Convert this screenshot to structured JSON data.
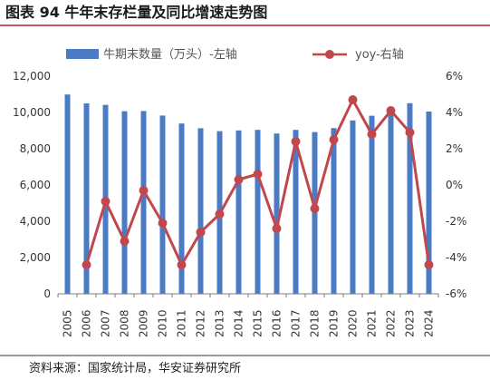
{
  "title": "图表 94  牛年末存栏量及同比增速走势图",
  "source": "资料来源：国家统计局，华安证券研究所",
  "colors": {
    "bar": "#4a7bc4",
    "line": "#c0484d",
    "title_rule": "#b22222"
  },
  "chart_data": {
    "type": "bar+line",
    "categories": [
      "2005",
      "2006",
      "2007",
      "2008",
      "2009",
      "2010",
      "2011",
      "2012",
      "2013",
      "2014",
      "2015",
      "2016",
      "2017",
      "2018",
      "2019",
      "2020",
      "2021",
      "2022",
      "2023",
      "2024"
    ],
    "series": [
      {
        "name": "牛期末数量（万头）-左轴",
        "type": "bar",
        "axis": "left",
        "values": [
          10990,
          10500,
          10420,
          10070,
          10080,
          9830,
          9390,
          9130,
          8970,
          9010,
          9040,
          8840,
          9040,
          8920,
          9140,
          9560,
          9820,
          10210,
          10510,
          10050
        ]
      },
      {
        "name": "yoy-右轴",
        "type": "line",
        "axis": "right",
        "values": [
          null,
          -4.4,
          -0.9,
          -3.1,
          -0.3,
          -2.1,
          -4.4,
          -2.6,
          -1.6,
          0.3,
          0.6,
          -2.4,
          2.4,
          -1.3,
          2.5,
          4.7,
          2.8,
          4.1,
          2.9,
          -4.4
        ]
      }
    ],
    "y_left": {
      "min": 0,
      "max": 12000,
      "ticks": [
        "0",
        "2,000",
        "4,000",
        "6,000",
        "8,000",
        "10,000",
        "12,000"
      ]
    },
    "y_right": {
      "min": -6,
      "max": 6,
      "ticks": [
        "-6%",
        "-4%",
        "-2%",
        "0%",
        "2%",
        "4%",
        "6%"
      ]
    },
    "grid": false,
    "legend": "top"
  }
}
